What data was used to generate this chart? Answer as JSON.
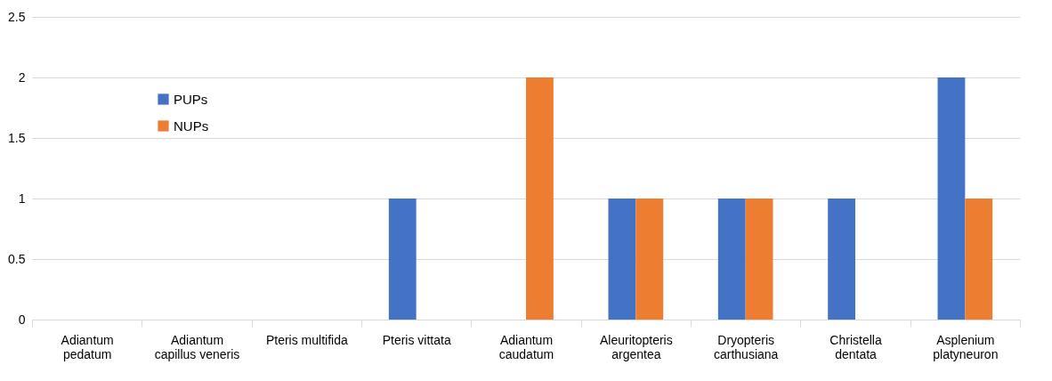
{
  "chart_data": {
    "type": "bar",
    "categories": [
      "Adiantum\npedatum",
      "Adiantum\ncapillus veneris",
      "Pteris multifida",
      "Pteris vittata",
      "Adiantum\ncaudatum",
      "Aleuritopteris\nargentea",
      "Dryopteris\ncarthusiana",
      "Christella\ndentata",
      "Asplenium\nplatyneuron"
    ],
    "series": [
      {
        "name": "PUPs",
        "color": "#4472c4",
        "values": [
          0,
          0,
          0,
          1,
          0,
          1,
          1,
          1,
          2
        ]
      },
      {
        "name": "NUPs",
        "color": "#ed7d31",
        "values": [
          0,
          0,
          0,
          0,
          2,
          1,
          1,
          0,
          1
        ]
      }
    ],
    "ylim": [
      0,
      2.5
    ],
    "yticks": [
      0,
      0.5,
      1,
      1.5,
      2,
      2.5
    ],
    "grid": "y",
    "legend": "top left"
  }
}
